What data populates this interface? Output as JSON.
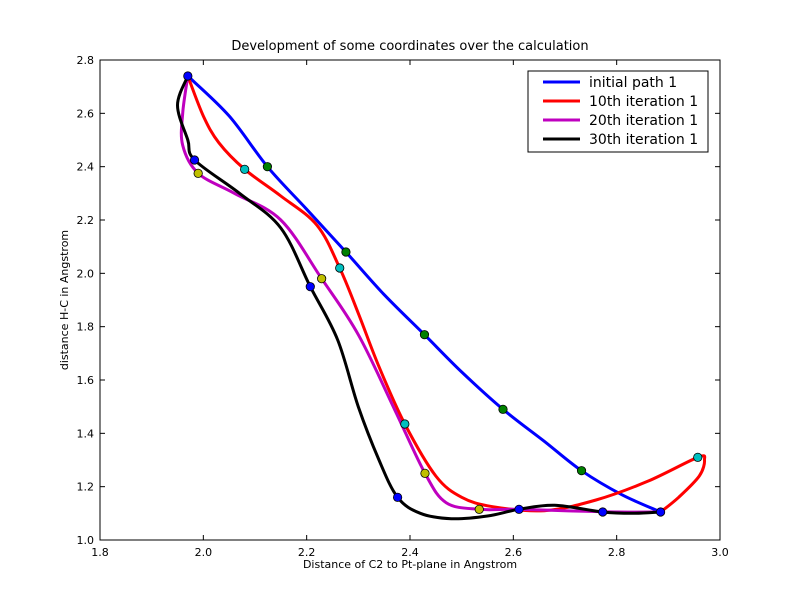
{
  "chart_data": {
    "type": "line",
    "title": "Development of some coordinates over the calculation",
    "xlabel": "Distance of C2 to Pt-plane in Angstrom",
    "ylabel": "distance H-C in Angstrom",
    "xlim": [
      1.8,
      3.0
    ],
    "ylim": [
      1.0,
      2.8
    ],
    "xticks": [
      "1.8",
      "2.0",
      "2.2",
      "2.4",
      "2.6",
      "2.8",
      "3.0"
    ],
    "yticks": [
      "1.0",
      "1.2",
      "1.4",
      "1.6",
      "1.8",
      "2.0",
      "2.2",
      "2.4",
      "2.6",
      "2.8"
    ],
    "grid": false,
    "legend_position": "top-right",
    "series": [
      {
        "name": "initial path 1",
        "color": "#0000ff",
        "curve": [
          [
            1.97,
            2.74
          ],
          [
            2.05,
            2.59
          ],
          [
            2.124,
            2.4
          ],
          [
            2.2,
            2.24
          ],
          [
            2.276,
            2.08
          ],
          [
            2.35,
            1.92
          ],
          [
            2.428,
            1.77
          ],
          [
            2.5,
            1.63
          ],
          [
            2.58,
            1.49
          ],
          [
            2.66,
            1.37
          ],
          [
            2.732,
            1.26
          ],
          [
            2.81,
            1.17
          ],
          [
            2.885,
            1.105
          ]
        ],
        "points": [
          [
            2.124,
            2.4
          ],
          [
            2.276,
            2.08
          ],
          [
            2.428,
            1.77
          ],
          [
            2.58,
            1.49
          ],
          [
            2.732,
            1.26
          ]
        ],
        "point_color": "#008000"
      },
      {
        "name": "10th iteration 1",
        "color": "#ff0000",
        "curve": [
          [
            1.97,
            2.74
          ],
          [
            2.0,
            2.59
          ],
          [
            2.03,
            2.49
          ],
          [
            2.08,
            2.39
          ],
          [
            2.15,
            2.29
          ],
          [
            2.22,
            2.18
          ],
          [
            2.264,
            2.02
          ],
          [
            2.3,
            1.85
          ],
          [
            2.34,
            1.65
          ],
          [
            2.39,
            1.435
          ],
          [
            2.45,
            1.24
          ],
          [
            2.5,
            1.16
          ],
          [
            2.56,
            1.125
          ],
          [
            2.66,
            1.11
          ],
          [
            2.76,
            1.15
          ],
          [
            2.86,
            1.22
          ],
          [
            2.957,
            1.31
          ],
          [
            2.97,
            1.3
          ],
          [
            2.96,
            1.24
          ],
          [
            2.92,
            1.16
          ],
          [
            2.885,
            1.105
          ]
        ],
        "points": [
          [
            2.08,
            2.39
          ],
          [
            2.264,
            2.02
          ],
          [
            2.39,
            1.435
          ],
          [
            2.957,
            1.31
          ]
        ],
        "point_color": "#00bfbf"
      },
      {
        "name": "20th iteration 1",
        "color": "#bf00bf",
        "curve": [
          [
            1.97,
            2.74
          ],
          [
            1.96,
            2.6
          ],
          [
            1.96,
            2.48
          ],
          [
            1.99,
            2.375
          ],
          [
            2.06,
            2.3
          ],
          [
            2.15,
            2.2
          ],
          [
            2.229,
            1.98
          ],
          [
            2.3,
            1.77
          ],
          [
            2.37,
            1.49
          ],
          [
            2.429,
            1.25
          ],
          [
            2.47,
            1.14
          ],
          [
            2.534,
            1.115
          ],
          [
            2.6,
            1.115
          ],
          [
            2.7,
            1.11
          ],
          [
            2.8,
            1.105
          ],
          [
            2.885,
            1.105
          ]
        ],
        "points": [
          [
            1.99,
            2.375
          ],
          [
            2.229,
            1.98
          ],
          [
            2.429,
            1.25
          ],
          [
            2.534,
            1.115
          ]
        ],
        "point_color": "#bfbf00"
      },
      {
        "name": "30th iteration 1",
        "color": "#000000",
        "curve": [
          [
            1.97,
            2.74
          ],
          [
            1.95,
            2.63
          ],
          [
            1.97,
            2.5
          ],
          [
            1.983,
            2.425
          ],
          [
            2.07,
            2.3
          ],
          [
            2.15,
            2.17
          ],
          [
            2.207,
            1.95
          ],
          [
            2.26,
            1.75
          ],
          [
            2.3,
            1.5
          ],
          [
            2.34,
            1.3
          ],
          [
            2.376,
            1.16
          ],
          [
            2.42,
            1.1
          ],
          [
            2.48,
            1.08
          ],
          [
            2.55,
            1.09
          ],
          [
            2.611,
            1.115
          ],
          [
            2.68,
            1.13
          ],
          [
            2.773,
            1.105
          ],
          [
            2.83,
            1.1
          ],
          [
            2.885,
            1.105
          ]
        ],
        "points": [
          [
            1.97,
            2.74
          ],
          [
            1.983,
            2.425
          ],
          [
            2.207,
            1.95
          ],
          [
            2.376,
            1.16
          ],
          [
            2.611,
            1.115
          ],
          [
            2.773,
            1.105
          ],
          [
            2.885,
            1.105
          ]
        ],
        "point_color": "#0000ff"
      }
    ]
  }
}
